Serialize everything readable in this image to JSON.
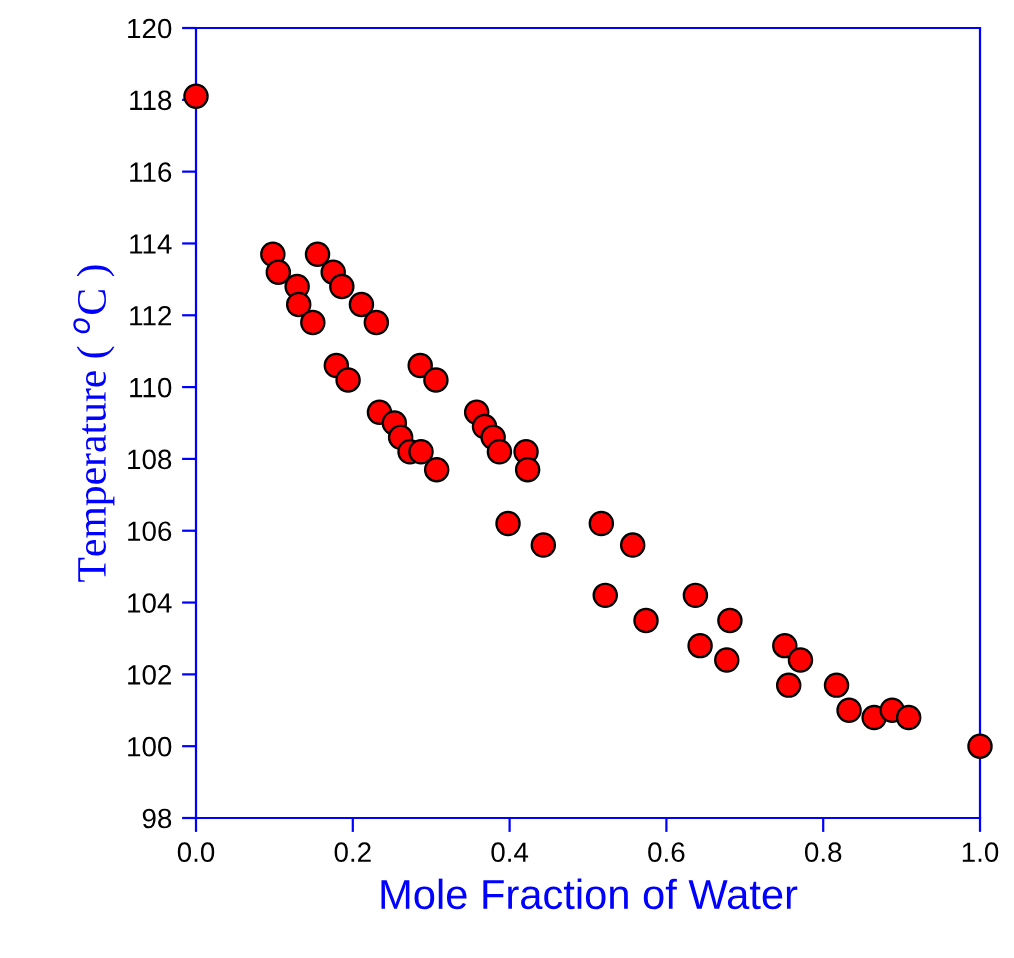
{
  "chart_data": {
    "type": "scatter",
    "xlabel": "Mole Fraction of Water",
    "ylabel": "Temperature ( $^{o}$C )",
    "x": [
      0,
      0.098,
      0.105,
      0.129,
      0.131,
      0.149,
      0.155,
      0.175,
      0.186,
      0.211,
      0.23,
      0.179,
      0.194,
      0.286,
      0.306,
      0.234,
      0.253,
      0.261,
      0.273,
      0.287,
      0.307,
      0.358,
      0.368,
      0.379,
      0.387,
      0.421,
      0.423,
      0.398,
      0.443,
      0.517,
      0.557,
      0.522,
      0.574,
      0.637,
      0.681,
      0.643,
      0.677,
      0.751,
      0.771,
      0.756,
      0.817,
      0.833,
      0.865,
      0.888,
      0.909,
      1.0
    ],
    "values": [
      118.1,
      113.7,
      113.2,
      112.8,
      112.3,
      111.8,
      113.7,
      113.2,
      112.8,
      112.3,
      111.8,
      110.6,
      110.2,
      110.6,
      110.2,
      109.3,
      109.0,
      108.6,
      108.2,
      108.2,
      107.7,
      109.3,
      108.9,
      108.6,
      108.2,
      108.2,
      107.7,
      106.2,
      105.6,
      106.2,
      105.6,
      104.2,
      103.5,
      104.2,
      103.5,
      102.8,
      102.4,
      102.8,
      102.4,
      101.7,
      101.7,
      101.0,
      100.8,
      101.0,
      100.8,
      100.0
    ],
    "color": "#ff0000",
    "marker": "circle",
    "xlim": [
      0,
      1
    ],
    "xticks": [
      {
        "value": 0,
        "label": "0.0"
      },
      {
        "value": 0.2,
        "label": "0.2"
      },
      {
        "value": 0.4,
        "label": "0.4"
      },
      {
        "value": 0.6,
        "label": "0.6"
      },
      {
        "value": 0.8,
        "label": "0.8"
      },
      {
        "value": 1,
        "label": "1.0"
      }
    ],
    "ylim": [
      98,
      120
    ],
    "yticks": [
      98,
      100,
      102,
      104,
      106,
      108,
      110,
      112,
      114,
      116,
      118,
      120
    ],
    "grid": false,
    "legend": false
  }
}
